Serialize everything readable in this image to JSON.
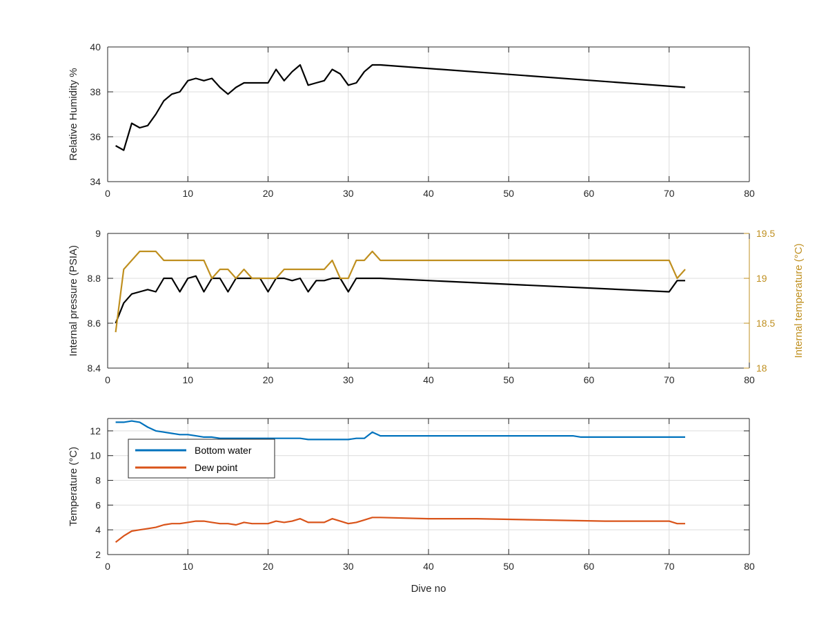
{
  "chart_data": [
    {
      "type": "line",
      "xlabel": "",
      "ylabel": "Relative Humidity %",
      "xlim": [
        0,
        80
      ],
      "ylim": [
        34,
        40
      ],
      "xticks": [
        0,
        10,
        20,
        30,
        40,
        50,
        60,
        70,
        80
      ],
      "yticks": [
        34,
        36,
        38,
        40
      ],
      "grid": true,
      "series": [
        {
          "color": "#000000",
          "x": [
            1,
            2,
            3,
            4,
            5,
            6,
            7,
            8,
            9,
            10,
            11,
            12,
            13,
            14,
            15,
            16,
            17,
            18,
            19,
            20,
            21,
            22,
            23,
            24,
            25,
            26,
            27,
            28,
            29,
            30,
            31,
            32,
            33,
            34,
            72
          ],
          "values": [
            35.6,
            35.4,
            36.6,
            36.4,
            36.5,
            37.0,
            37.6,
            37.9,
            38.0,
            38.5,
            38.6,
            38.5,
            38.6,
            38.2,
            37.9,
            38.2,
            38.4,
            38.4,
            38.4,
            38.4,
            39.0,
            38.5,
            38.9,
            39.2,
            38.3,
            38.4,
            38.5,
            39.0,
            38.8,
            38.3,
            38.4,
            38.9,
            39.2,
            39.2,
            38.2
          ]
        }
      ]
    },
    {
      "type": "line",
      "xlabel": "",
      "ylabel": "Internal pressure (PSIA)",
      "y2label": "Internal temperature (°C)",
      "xlim": [
        0,
        80
      ],
      "ylim": [
        8.4,
        9
      ],
      "y2lim": [
        18,
        19.5
      ],
      "xticks": [
        0,
        10,
        20,
        30,
        40,
        50,
        60,
        70,
        80
      ],
      "yticks": [
        8.4,
        8.6,
        8.8,
        9
      ],
      "y2ticks": [
        18,
        18.5,
        19,
        19.5
      ],
      "grid": true,
      "series": [
        {
          "axis": "left",
          "color": "#000000",
          "x": [
            1,
            2,
            3,
            4,
            5,
            6,
            7,
            8,
            9,
            10,
            11,
            12,
            13,
            14,
            15,
            16,
            17,
            18,
            19,
            20,
            21,
            22,
            23,
            24,
            25,
            26,
            27,
            28,
            29,
            30,
            31,
            32,
            33,
            34,
            70,
            71,
            72
          ],
          "values": [
            8.6,
            8.69,
            8.73,
            8.74,
            8.75,
            8.74,
            8.8,
            8.8,
            8.74,
            8.8,
            8.81,
            8.74,
            8.8,
            8.8,
            8.74,
            8.8,
            8.8,
            8.8,
            8.8,
            8.74,
            8.8,
            8.8,
            8.79,
            8.8,
            8.74,
            8.79,
            8.79,
            8.8,
            8.8,
            8.74,
            8.8,
            8.8,
            8.8,
            8.8,
            8.74,
            8.79,
            8.79
          ]
        },
        {
          "axis": "right",
          "color": "#bf8f1f",
          "x": [
            1,
            2,
            3,
            4,
            5,
            6,
            7,
            8,
            9,
            10,
            11,
            12,
            13,
            14,
            15,
            16,
            17,
            18,
            19,
            20,
            21,
            22,
            23,
            24,
            25,
            26,
            27,
            28,
            29,
            30,
            31,
            32,
            33,
            34,
            70,
            71,
            72
          ],
          "values": [
            18.4,
            19.1,
            19.2,
            19.3,
            19.3,
            19.3,
            19.2,
            19.2,
            19.2,
            19.2,
            19.2,
            19.2,
            19.0,
            19.1,
            19.1,
            19.0,
            19.1,
            19.0,
            19.0,
            19.0,
            19.0,
            19.1,
            19.1,
            19.1,
            19.1,
            19.1,
            19.1,
            19.2,
            19.0,
            19.0,
            19.2,
            19.2,
            19.3,
            19.2,
            19.2,
            19.0,
            19.1
          ]
        }
      ]
    },
    {
      "type": "line",
      "xlabel": "Dive no",
      "ylabel": "Temperature (°C)",
      "xlim": [
        0,
        80
      ],
      "ylim": [
        2,
        13
      ],
      "xticks": [
        0,
        10,
        20,
        30,
        40,
        50,
        60,
        70,
        80
      ],
      "yticks": [
        2,
        4,
        6,
        8,
        10,
        12
      ],
      "grid": true,
      "legend": "top-left",
      "series": [
        {
          "name": "Bottom water",
          "color": "#0072bd",
          "x": [
            1,
            2,
            3,
            4,
            5,
            6,
            7,
            8,
            9,
            10,
            11,
            12,
            13,
            14,
            15,
            16,
            17,
            18,
            19,
            20,
            21,
            22,
            23,
            24,
            25,
            26,
            27,
            28,
            29,
            30,
            31,
            32,
            33,
            34,
            35,
            36,
            58,
            59,
            60,
            72
          ],
          "values": [
            12.7,
            12.7,
            12.8,
            12.7,
            12.3,
            12.0,
            11.9,
            11.8,
            11.7,
            11.7,
            11.6,
            11.5,
            11.5,
            11.4,
            11.4,
            11.4,
            11.4,
            11.4,
            11.4,
            11.4,
            11.4,
            11.4,
            11.4,
            11.4,
            11.3,
            11.3,
            11.3,
            11.3,
            11.3,
            11.3,
            11.4,
            11.4,
            11.9,
            11.6,
            11.6,
            11.6,
            11.6,
            11.5,
            11.5,
            11.5
          ]
        },
        {
          "name": "Dew point",
          "color": "#d95319",
          "x": [
            1,
            2,
            3,
            4,
            5,
            6,
            7,
            8,
            9,
            10,
            11,
            12,
            13,
            14,
            15,
            16,
            17,
            18,
            19,
            20,
            21,
            22,
            23,
            24,
            25,
            26,
            27,
            28,
            29,
            30,
            31,
            32,
            33,
            34,
            40,
            46,
            54,
            62,
            70,
            71,
            72
          ],
          "values": [
            3.0,
            3.5,
            3.9,
            4.0,
            4.1,
            4.2,
            4.4,
            4.5,
            4.5,
            4.6,
            4.7,
            4.7,
            4.6,
            4.5,
            4.5,
            4.4,
            4.6,
            4.5,
            4.5,
            4.5,
            4.7,
            4.6,
            4.7,
            4.9,
            4.6,
            4.6,
            4.6,
            4.9,
            4.7,
            4.5,
            4.6,
            4.8,
            5.0,
            5.0,
            4.9,
            4.9,
            4.8,
            4.7,
            4.7,
            4.5,
            4.5
          ]
        }
      ]
    }
  ]
}
